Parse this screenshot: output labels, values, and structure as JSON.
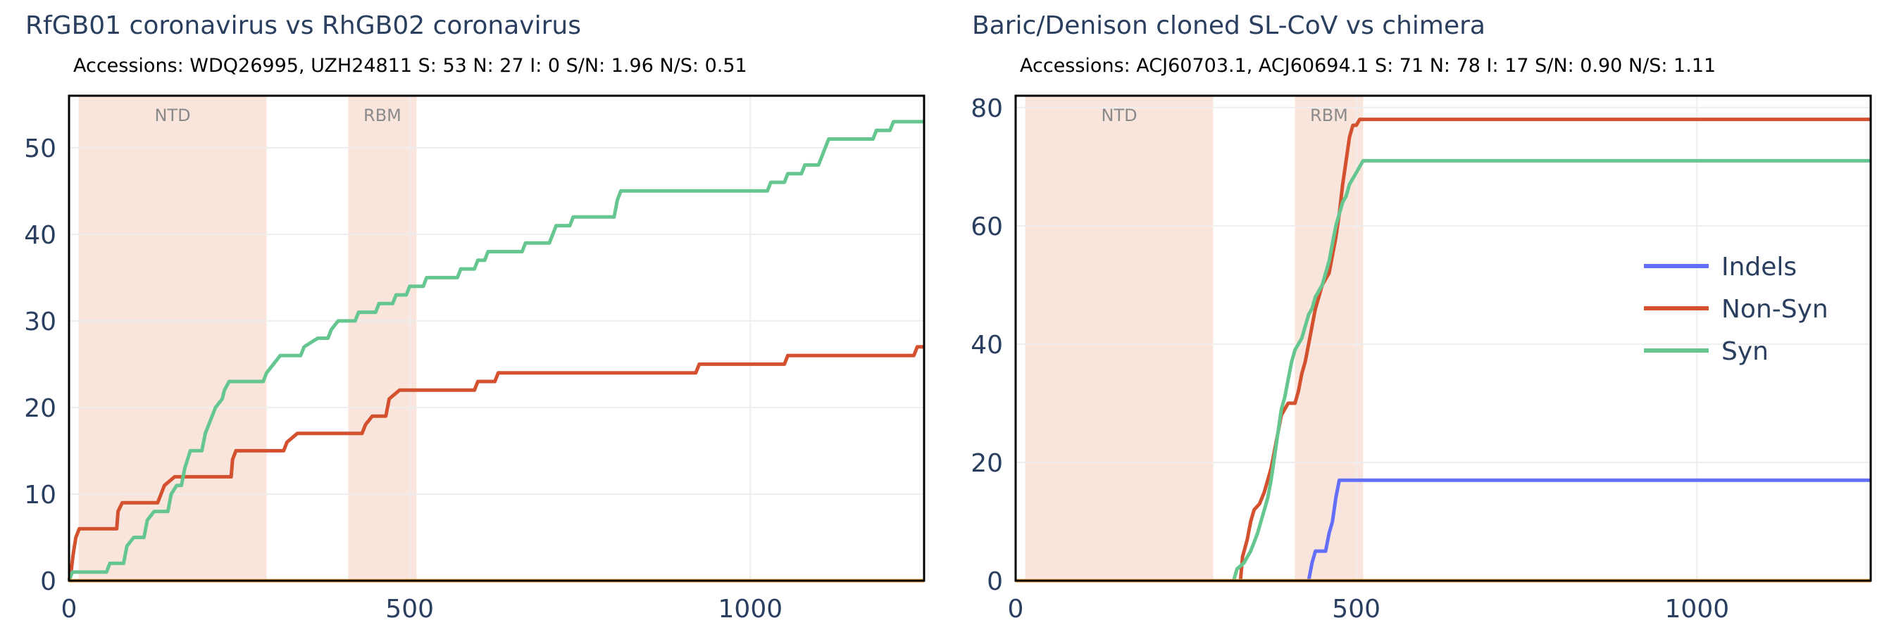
{
  "chart_data": [
    {
      "type": "line",
      "title": "RfGB01 coronavirus vs RhGB02 coronavirus",
      "subtitle": "Accessions: WDQ26995, UZH24811     S: 53  N: 27  I: 0  S/N: 1.96  N/S: 0.51",
      "xlabel": "",
      "ylabel": "",
      "xlim": [
        0,
        1255
      ],
      "ylim": [
        0,
        56
      ],
      "x_ticks": [
        {
          "value": 0,
          "label": "0"
        },
        {
          "value": 500,
          "label": "500"
        },
        {
          "value": 1000,
          "label": "1000"
        }
      ],
      "y_ticks": [
        {
          "value": 0,
          "label": "0"
        },
        {
          "value": 10,
          "label": "10"
        },
        {
          "value": 20,
          "label": "20"
        },
        {
          "value": 30,
          "label": "30"
        },
        {
          "value": 40,
          "label": "40"
        },
        {
          "value": 50,
          "label": "50"
        }
      ],
      "grid": true,
      "regions": [
        {
          "label": "NTD",
          "x0": 14,
          "x1": 290
        },
        {
          "label": "RBM",
          "x0": 410,
          "x1": 510
        }
      ],
      "series": [
        {
          "name": "Indels",
          "color": "#636efa",
          "points": [
            [
              0,
              0
            ],
            [
              1255,
              0
            ]
          ]
        },
        {
          "name": "Non-Syn",
          "color": "#d4512f",
          "points": [
            [
              0,
              0
            ],
            [
              3,
              1
            ],
            [
              6,
              3
            ],
            [
              10,
              5
            ],
            [
              15,
              6
            ],
            [
              70,
              6
            ],
            [
              72,
              8
            ],
            [
              78,
              9
            ],
            [
              130,
              9
            ],
            [
              135,
              10
            ],
            [
              140,
              11
            ],
            [
              155,
              12
            ],
            [
              238,
              12
            ],
            [
              240,
              14
            ],
            [
              245,
              15
            ],
            [
              315,
              15
            ],
            [
              320,
              16
            ],
            [
              335,
              17
            ],
            [
              430,
              17
            ],
            [
              435,
              18
            ],
            [
              445,
              19
            ],
            [
              465,
              19
            ],
            [
              470,
              21
            ],
            [
              485,
              22
            ],
            [
              595,
              22
            ],
            [
              600,
              23
            ],
            [
              625,
              23
            ],
            [
              630,
              24
            ],
            [
              920,
              24
            ],
            [
              925,
              25
            ],
            [
              1050,
              25
            ],
            [
              1055,
              26
            ],
            [
              1240,
              26
            ],
            [
              1245,
              27
            ],
            [
              1255,
              27
            ]
          ]
        },
        {
          "name": "Syn",
          "color": "#66c68f",
          "points": [
            [
              0,
              0
            ],
            [
              5,
              1
            ],
            [
              55,
              1
            ],
            [
              60,
              2
            ],
            [
              80,
              2
            ],
            [
              85,
              4
            ],
            [
              95,
              5
            ],
            [
              110,
              5
            ],
            [
              115,
              7
            ],
            [
              125,
              8
            ],
            [
              145,
              8
            ],
            [
              150,
              10
            ],
            [
              158,
              11
            ],
            [
              165,
              11
            ],
            [
              170,
              13
            ],
            [
              178,
              15
            ],
            [
              195,
              15
            ],
            [
              200,
              17
            ],
            [
              205,
              18
            ],
            [
              215,
              20
            ],
            [
              225,
              21
            ],
            [
              228,
              22
            ],
            [
              235,
              23
            ],
            [
              285,
              23
            ],
            [
              290,
              24
            ],
            [
              300,
              25
            ],
            [
              310,
              26
            ],
            [
              340,
              26
            ],
            [
              345,
              27
            ],
            [
              365,
              28
            ],
            [
              380,
              28
            ],
            [
              385,
              29
            ],
            [
              395,
              30
            ],
            [
              420,
              30
            ],
            [
              425,
              31
            ],
            [
              450,
              31
            ],
            [
              455,
              32
            ],
            [
              475,
              32
            ],
            [
              480,
              33
            ],
            [
              495,
              33
            ],
            [
              500,
              34
            ],
            [
              520,
              34
            ],
            [
              525,
              35
            ],
            [
              570,
              35
            ],
            [
              575,
              36
            ],
            [
              595,
              36
            ],
            [
              600,
              37
            ],
            [
              610,
              37
            ],
            [
              615,
              38
            ],
            [
              665,
              38
            ],
            [
              670,
              39
            ],
            [
              705,
              39
            ],
            [
              710,
              40
            ],
            [
              715,
              41
            ],
            [
              735,
              41
            ],
            [
              740,
              42
            ],
            [
              800,
              42
            ],
            [
              805,
              44
            ],
            [
              810,
              45
            ],
            [
              1025,
              45
            ],
            [
              1030,
              46
            ],
            [
              1050,
              46
            ],
            [
              1055,
              47
            ],
            [
              1075,
              47
            ],
            [
              1080,
              48
            ],
            [
              1100,
              48
            ],
            [
              1105,
              49
            ],
            [
              1110,
              50
            ],
            [
              1115,
              51
            ],
            [
              1180,
              51
            ],
            [
              1185,
              52
            ],
            [
              1205,
              52
            ],
            [
              1210,
              53
            ],
            [
              1255,
              53
            ]
          ]
        },
        {
          "name": "",
          "color": "#f4a940",
          "points": [
            [
              0,
              0
            ],
            [
              1255,
              0
            ]
          ]
        }
      ]
    },
    {
      "type": "line",
      "title": "Baric/Denison cloned SL-CoV vs chimera",
      "subtitle": "Accessions: ACJ60703.1, ACJ60694.1     S: 71  N: 78  I: 17  S/N: 0.90  N/S: 1.11",
      "xlabel": "",
      "ylabel": "",
      "xlim": [
        0,
        1255
      ],
      "ylim": [
        0,
        82
      ],
      "x_ticks": [
        {
          "value": 0,
          "label": "0"
        },
        {
          "value": 500,
          "label": "500"
        },
        {
          "value": 1000,
          "label": "1000"
        }
      ],
      "y_ticks": [
        {
          "value": 0,
          "label": "0"
        },
        {
          "value": 20,
          "label": "20"
        },
        {
          "value": 40,
          "label": "40"
        },
        {
          "value": 60,
          "label": "60"
        },
        {
          "value": 80,
          "label": "80"
        }
      ],
      "grid": true,
      "regions": [
        {
          "label": "NTD",
          "x0": 14,
          "x1": 290
        },
        {
          "label": "RBM",
          "x0": 410,
          "x1": 510
        }
      ],
      "legend": {
        "placement": "right",
        "entries": [
          "Indels",
          "Non-Syn",
          "Syn"
        ]
      },
      "series": [
        {
          "name": "Indels",
          "color": "#636efa",
          "points": [
            [
              0,
              0
            ],
            [
              430,
              0
            ],
            [
              435,
              3
            ],
            [
              440,
              5
            ],
            [
              455,
              5
            ],
            [
              460,
              8
            ],
            [
              465,
              10
            ],
            [
              470,
              14
            ],
            [
              475,
              17
            ],
            [
              1255,
              17
            ]
          ]
        },
        {
          "name": "Non-Syn",
          "color": "#d4512f",
          "points": [
            [
              0,
              0
            ],
            [
              330,
              0
            ],
            [
              333,
              4
            ],
            [
              340,
              7
            ],
            [
              345,
              10
            ],
            [
              350,
              12
            ],
            [
              358,
              13
            ],
            [
              365,
              15
            ],
            [
              370,
              17
            ],
            [
              375,
              19
            ],
            [
              380,
              22
            ],
            [
              385,
              25
            ],
            [
              390,
              28
            ],
            [
              395,
              29
            ],
            [
              400,
              30
            ],
            [
              410,
              30
            ],
            [
              415,
              32
            ],
            [
              420,
              35
            ],
            [
              425,
              37
            ],
            [
              430,
              40
            ],
            [
              435,
              43
            ],
            [
              440,
              46
            ],
            [
              445,
              48
            ],
            [
              450,
              50
            ],
            [
              455,
              51
            ],
            [
              460,
              52
            ],
            [
              465,
              55
            ],
            [
              470,
              58
            ],
            [
              475,
              62
            ],
            [
              480,
              67
            ],
            [
              485,
              71
            ],
            [
              490,
              75
            ],
            [
              495,
              77
            ],
            [
              500,
              77
            ],
            [
              505,
              78
            ],
            [
              1255,
              78
            ]
          ]
        },
        {
          "name": "Syn",
          "color": "#66c68f",
          "points": [
            [
              0,
              0
            ],
            [
              320,
              0
            ],
            [
              325,
              2
            ],
            [
              335,
              3
            ],
            [
              345,
              5
            ],
            [
              355,
              8
            ],
            [
              365,
              12
            ],
            [
              370,
              14
            ],
            [
              375,
              17
            ],
            [
              380,
              21
            ],
            [
              385,
              25
            ],
            [
              390,
              29
            ],
            [
              395,
              31
            ],
            [
              400,
              34
            ],
            [
              405,
              37
            ],
            [
              410,
              39
            ],
            [
              415,
              40
            ],
            [
              420,
              41
            ],
            [
              425,
              43
            ],
            [
              430,
              45
            ],
            [
              435,
              46
            ],
            [
              440,
              48
            ],
            [
              445,
              49
            ],
            [
              450,
              50
            ],
            [
              455,
              52
            ],
            [
              460,
              54
            ],
            [
              465,
              57
            ],
            [
              470,
              60
            ],
            [
              475,
              62
            ],
            [
              480,
              64
            ],
            [
              485,
              65
            ],
            [
              490,
              67
            ],
            [
              495,
              68
            ],
            [
              500,
              69
            ],
            [
              505,
              70
            ],
            [
              510,
              71
            ],
            [
              1255,
              71
            ]
          ]
        },
        {
          "name": "",
          "color": "#f4a940",
          "points": [
            [
              0,
              0
            ],
            [
              1255,
              0
            ]
          ]
        }
      ]
    }
  ]
}
